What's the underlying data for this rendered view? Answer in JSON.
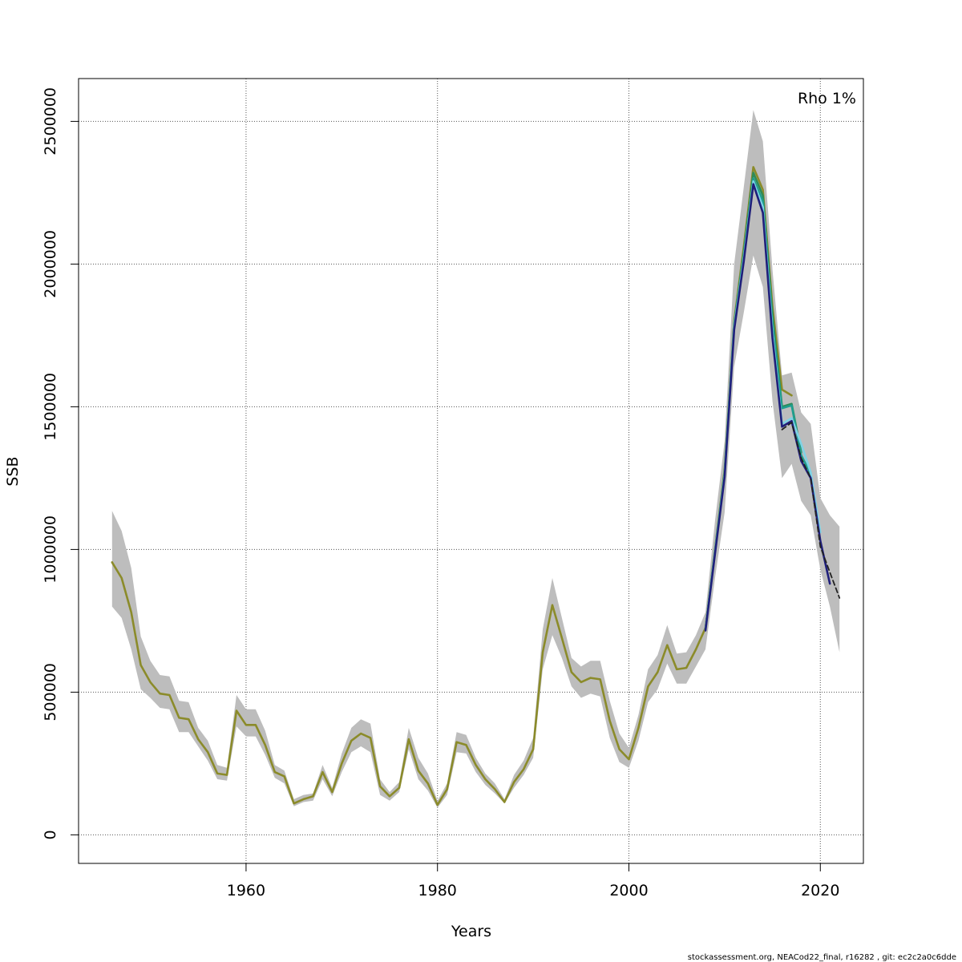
{
  "chart_data": {
    "type": "line",
    "title": "",
    "xlabel": "Years",
    "ylabel": "SSB",
    "xlim": [
      1942.5,
      2024.5
    ],
    "ylim": [
      -100000,
      2650000
    ],
    "x_ticks": [
      1960,
      1980,
      2000,
      2020
    ],
    "y_ticks": [
      0,
      500000,
      1000000,
      1500000,
      2000000,
      2500000
    ],
    "grid": true,
    "annotation": "Rho 1%",
    "footer": "stockassessment.org, NEACod22_final, r16282 , git: ec2c2a0c6dde",
    "band": {
      "years": [
        1946,
        1947,
        1948,
        1949,
        1950,
        1951,
        1952,
        1953,
        1954,
        1955,
        1956,
        1957,
        1958,
        1959,
        1960,
        1961,
        1962,
        1963,
        1964,
        1965,
        1966,
        1967,
        1968,
        1969,
        1970,
        1971,
        1972,
        1973,
        1974,
        1975,
        1976,
        1977,
        1978,
        1979,
        1980,
        1981,
        1982,
        1983,
        1984,
        1985,
        1986,
        1987,
        1988,
        1989,
        1990,
        1991,
        1992,
        1993,
        1994,
        1995,
        1996,
        1997,
        1998,
        1999,
        2000,
        2001,
        2002,
        2003,
        2004,
        2005,
        2006,
        2007,
        2008,
        2009,
        2010,
        2011,
        2012,
        2013,
        2014,
        2015,
        2016,
        2017,
        2018,
        2019,
        2020,
        2021,
        2022
      ],
      "low": [
        800000,
        760000,
        650000,
        510000,
        480000,
        445000,
        440000,
        360000,
        360000,
        310000,
        260000,
        195000,
        190000,
        380000,
        345000,
        345000,
        280000,
        200000,
        180000,
        100000,
        115000,
        120000,
        195000,
        135000,
        220000,
        290000,
        310000,
        290000,
        140000,
        120000,
        150000,
        300000,
        195000,
        155000,
        95000,
        140000,
        290000,
        285000,
        220000,
        175000,
        145000,
        110000,
        165000,
        210000,
        270000,
        580000,
        700000,
        620000,
        520000,
        480000,
        495000,
        485000,
        340000,
        255000,
        235000,
        330000,
        465000,
        510000,
        600000,
        530000,
        530000,
        590000,
        650000,
        900000,
        1130000,
        1640000,
        1830000,
        2030000,
        1920000,
        1520000,
        1250000,
        1300000,
        1170000,
        1120000,
        930000,
        800000,
        640000
      ],
      "high": [
        1135000,
        1065000,
        935000,
        695000,
        610000,
        560000,
        555000,
        470000,
        465000,
        375000,
        330000,
        245000,
        235000,
        490000,
        440000,
        440000,
        365000,
        245000,
        225000,
        125000,
        140000,
        145000,
        245000,
        165000,
        285000,
        375000,
        405000,
        390000,
        195000,
        150000,
        185000,
        375000,
        270000,
        215000,
        120000,
        180000,
        360000,
        350000,
        270000,
        215000,
        180000,
        125000,
        210000,
        260000,
        340000,
        720000,
        900000,
        760000,
        620000,
        590000,
        610000,
        610000,
        470000,
        355000,
        305000,
        420000,
        580000,
        630000,
        735000,
        635000,
        640000,
        700000,
        780000,
        1100000,
        1380000,
        2000000,
        2270000,
        2540000,
        2430000,
        1980000,
        1610000,
        1620000,
        1480000,
        1440000,
        1180000,
        1120000,
        1080000
      ]
    },
    "series": [
      {
        "color": "#8b8b2a",
        "dash": false,
        "x": [
          1946,
          1947,
          1948,
          1949,
          1950,
          1951,
          1952,
          1953,
          1954,
          1955,
          1956,
          1957,
          1958,
          1959,
          1960,
          1961,
          1962,
          1963,
          1964,
          1965,
          1966,
          1967,
          1968,
          1969,
          1970,
          1971,
          1972,
          1973,
          1974,
          1975,
          1976,
          1977,
          1978,
          1979,
          1980,
          1981,
          1982,
          1983,
          1984,
          1985,
          1986,
          1987,
          1988,
          1989,
          1990,
          1991,
          1992,
          1993,
          1994,
          1995,
          1996,
          1997,
          1998,
          1999,
          2000,
          2001,
          2002,
          2003,
          2004,
          2005,
          2006,
          2007,
          2008,
          2009,
          2010,
          2011,
          2012,
          2013,
          2014,
          2015,
          2016,
          2017
        ],
        "y": [
          955000,
          900000,
          780000,
          595000,
          535000,
          495000,
          490000,
          410000,
          405000,
          335000,
          290000,
          215000,
          210000,
          435000,
          385000,
          385000,
          315000,
          220000,
          205000,
          110000,
          125000,
          135000,
          220000,
          150000,
          250000,
          330000,
          355000,
          340000,
          170000,
          135000,
          165000,
          335000,
          225000,
          180000,
          105000,
          160000,
          325000,
          315000,
          245000,
          195000,
          160000,
          115000,
          185000,
          230000,
          300000,
          640000,
          805000,
          690000,
          570000,
          535000,
          550000,
          545000,
          400000,
          300000,
          265000,
          375000,
          520000,
          570000,
          665000,
          580000,
          585000,
          650000,
          725000,
          1000000,
          1280000,
          1800000,
          2060000,
          2340000,
          2260000,
          1850000,
          1560000,
          1540000
        ]
      },
      {
        "color": "#2e8b57",
        "dash": false,
        "x": [
          2008,
          2009,
          2010,
          2011,
          2012,
          2013,
          2014,
          2015,
          2016,
          2017,
          2018
        ],
        "y": [
          720000,
          995000,
          1270000,
          1790000,
          2040000,
          2320000,
          2240000,
          1820000,
          1500000,
          1510000,
          1340000
        ]
      },
      {
        "color": "#1f9e8f",
        "dash": false,
        "x": [
          2008,
          2009,
          2010,
          2011,
          2012,
          2013,
          2014,
          2015,
          2016,
          2017,
          2018,
          2019
        ],
        "y": [
          720000,
          992000,
          1265000,
          1785000,
          2030000,
          2300000,
          2220000,
          1790000,
          1495000,
          1505000,
          1330000,
          1265000
        ]
      },
      {
        "color": "#7fd3e6",
        "dash": false,
        "x": [
          2008,
          2009,
          2010,
          2011,
          2012,
          2013,
          2014,
          2015,
          2016,
          2017,
          2018,
          2019,
          2020
        ],
        "y": [
          718000,
          990000,
          1260000,
          1780000,
          2020000,
          2290000,
          2200000,
          1760000,
          1440000,
          1460000,
          1370000,
          1270000,
          1060000
        ]
      },
      {
        "color": "#1f1f7a",
        "dash": false,
        "x": [
          2008,
          2009,
          2010,
          2011,
          2012,
          2013,
          2014,
          2015,
          2016,
          2017,
          2018,
          2019,
          2020,
          2021
        ],
        "y": [
          716000,
          985000,
          1255000,
          1770000,
          2010000,
          2280000,
          2180000,
          1740000,
          1430000,
          1450000,
          1310000,
          1250000,
          1030000,
          880000
        ]
      },
      {
        "color": "#222222",
        "dash": true,
        "x": [
          2016,
          2017,
          2018,
          2019,
          2020,
          2021,
          2022
        ],
        "y": [
          1420000,
          1445000,
          1320000,
          1250000,
          1010000,
          920000,
          830000
        ]
      }
    ]
  }
}
